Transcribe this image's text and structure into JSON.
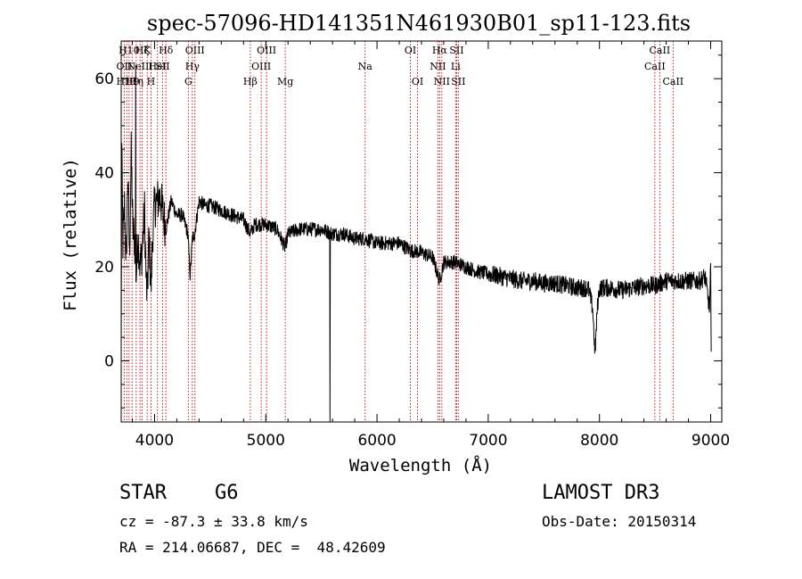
{
  "chart_data": {
    "type": "line",
    "title": "spec-57096-HD141351N461930B01_sp11-123.fits",
    "xlabel": "Wavelength (Å)",
    "ylabel": "Flux (relative)",
    "xlim": [
      3700,
      9100
    ],
    "ylim": [
      -13,
      68
    ],
    "xticks": [
      4000,
      5000,
      6000,
      7000,
      8000,
      9000
    ],
    "xtick_labels": [
      "4000",
      "5000",
      "6000",
      "7000",
      "8000",
      "9000"
    ],
    "yticks": [
      0,
      20,
      40,
      60
    ],
    "ytick_labels": [
      "0",
      "20",
      "40",
      "60"
    ],
    "series": [
      {
        "name": "spectrum",
        "anchors": [
          [
            3700,
            1
          ],
          [
            3705,
            45
          ],
          [
            3715,
            25
          ],
          [
            3730,
            33
          ],
          [
            3745,
            20
          ],
          [
            3760,
            40
          ],
          [
            3775,
            22
          ],
          [
            3790,
            44
          ],
          [
            3805,
            28
          ],
          [
            3820,
            26
          ],
          [
            3835,
            18
          ],
          [
            3850,
            27
          ],
          [
            3870,
            20
          ],
          [
            3890,
            24
          ],
          [
            3910,
            32
          ],
          [
            3925,
            16
          ],
          [
            3935,
            14
          ],
          [
            3950,
            27
          ],
          [
            3968,
            15
          ],
          [
            3985,
            28
          ],
          [
            4000,
            33
          ],
          [
            4050,
            35
          ],
          [
            4102,
            28
          ],
          [
            4150,
            34
          ],
          [
            4200,
            31
          ],
          [
            4250,
            31
          ],
          [
            4300,
            27
          ],
          [
            4320,
            18
          ],
          [
            4340,
            26
          ],
          [
            4360,
            27
          ],
          [
            4400,
            34
          ],
          [
            4450,
            33
          ],
          [
            4500,
            33
          ],
          [
            4600,
            32
          ],
          [
            4700,
            31
          ],
          [
            4800,
            30
          ],
          [
            4861,
            27
          ],
          [
            4900,
            29
          ],
          [
            5000,
            29
          ],
          [
            5100,
            28
          ],
          [
            5175,
            24
          ],
          [
            5200,
            27
          ],
          [
            5300,
            28
          ],
          [
            5400,
            28
          ],
          [
            5500,
            28
          ],
          [
            5600,
            27
          ],
          [
            5700,
            27
          ],
          [
            5800,
            26
          ],
          [
            5893,
            26
          ],
          [
            6000,
            25
          ],
          [
            6100,
            25
          ],
          [
            6200,
            25
          ],
          [
            6300,
            23.5
          ],
          [
            6400,
            23
          ],
          [
            6500,
            22
          ],
          [
            6563,
            17
          ],
          [
            6600,
            21
          ],
          [
            6700,
            21
          ],
          [
            6800,
            20
          ],
          [
            6900,
            19
          ],
          [
            7000,
            18.5
          ],
          [
            7100,
            18
          ],
          [
            7200,
            17.5
          ],
          [
            7300,
            17
          ],
          [
            7400,
            17
          ],
          [
            7500,
            16.5
          ],
          [
            7600,
            16.5
          ],
          [
            7700,
            16
          ],
          [
            7800,
            15.5
          ],
          [
            7900,
            15.5
          ],
          [
            7940,
            11
          ],
          [
            7960,
            1
          ],
          [
            7980,
            11
          ],
          [
            8000,
            15.5
          ],
          [
            8100,
            15.5
          ],
          [
            8200,
            15
          ],
          [
            8300,
            15.5
          ],
          [
            8400,
            16
          ],
          [
            8500,
            16
          ],
          [
            8600,
            17
          ],
          [
            8700,
            17
          ],
          [
            8800,
            17
          ],
          [
            8900,
            17
          ],
          [
            8950,
            18
          ],
          [
            8990,
            11
          ],
          [
            9000,
            20
          ],
          [
            9005,
            0
          ]
        ],
        "spikes": [
          {
            "x": 3829,
            "value": 63
          },
          {
            "x": 5577,
            "value": -13
          }
        ]
      }
    ],
    "lines": [
      {
        "x": 3727,
        "label": "OII",
        "row": 1
      },
      {
        "x": 3750,
        "label": "H11",
        "row": 2
      },
      {
        "x": 3771,
        "label": "H10",
        "row": 0
      },
      {
        "x": 3798,
        "label": "H9",
        "row": 2
      },
      {
        "x": 3835,
        "label": "Hη",
        "row": 2
      },
      {
        "x": 3869,
        "label": "NeIII",
        "row": 1
      },
      {
        "x": 3889,
        "label": "Hζ",
        "row": 0
      },
      {
        "x": 3934,
        "label": "K",
        "row": 0
      },
      {
        "x": 3968,
        "label": "H",
        "row": 2
      },
      {
        "x": 4026,
        "label": "HeI",
        "row": 1
      },
      {
        "x": 4072,
        "label": "SII",
        "row": 1
      },
      {
        "x": 4102,
        "label": "Hδ",
        "row": 0
      },
      {
        "x": 4304,
        "label": "G",
        "row": 2
      },
      {
        "x": 4340,
        "label": "Hγ",
        "row": 1
      },
      {
        "x": 4363,
        "label": "OIII",
        "row": 0
      },
      {
        "x": 4861,
        "label": "Hβ",
        "row": 2
      },
      {
        "x": 4959,
        "label": "OIII",
        "row": 1
      },
      {
        "x": 5007,
        "label": "OIII",
        "row": 0
      },
      {
        "x": 5175,
        "label": "Mg",
        "row": 2
      },
      {
        "x": 5893,
        "label": "Na",
        "row": 1
      },
      {
        "x": 6300,
        "label": "OI",
        "row": 0
      },
      {
        "x": 6364,
        "label": "OI",
        "row": 2
      },
      {
        "x": 6548,
        "label": "NII",
        "row": 1
      },
      {
        "x": 6563,
        "label": "Hα",
        "row": 0
      },
      {
        "x": 6583,
        "label": "NII",
        "row": 2
      },
      {
        "x": 6707,
        "label": "Li",
        "row": 1
      },
      {
        "x": 6716,
        "label": "SII",
        "row": 0
      },
      {
        "x": 6731,
        "label": "SII",
        "row": 2
      },
      {
        "x": 8498,
        "label": "CaII",
        "row": 1
      },
      {
        "x": 8542,
        "label": "CaII",
        "row": 0
      },
      {
        "x": 8662,
        "label": "CaII",
        "row": 2
      }
    ]
  },
  "info": {
    "class": "STAR",
    "subclass": "G6",
    "survey": "LAMOST DR3",
    "cz": "cz = -87.3 ± 33.8 km/s",
    "obs_date": "Obs-Date: 20150314",
    "coords": "RA = 214.06687, DEC =  48.42609"
  }
}
